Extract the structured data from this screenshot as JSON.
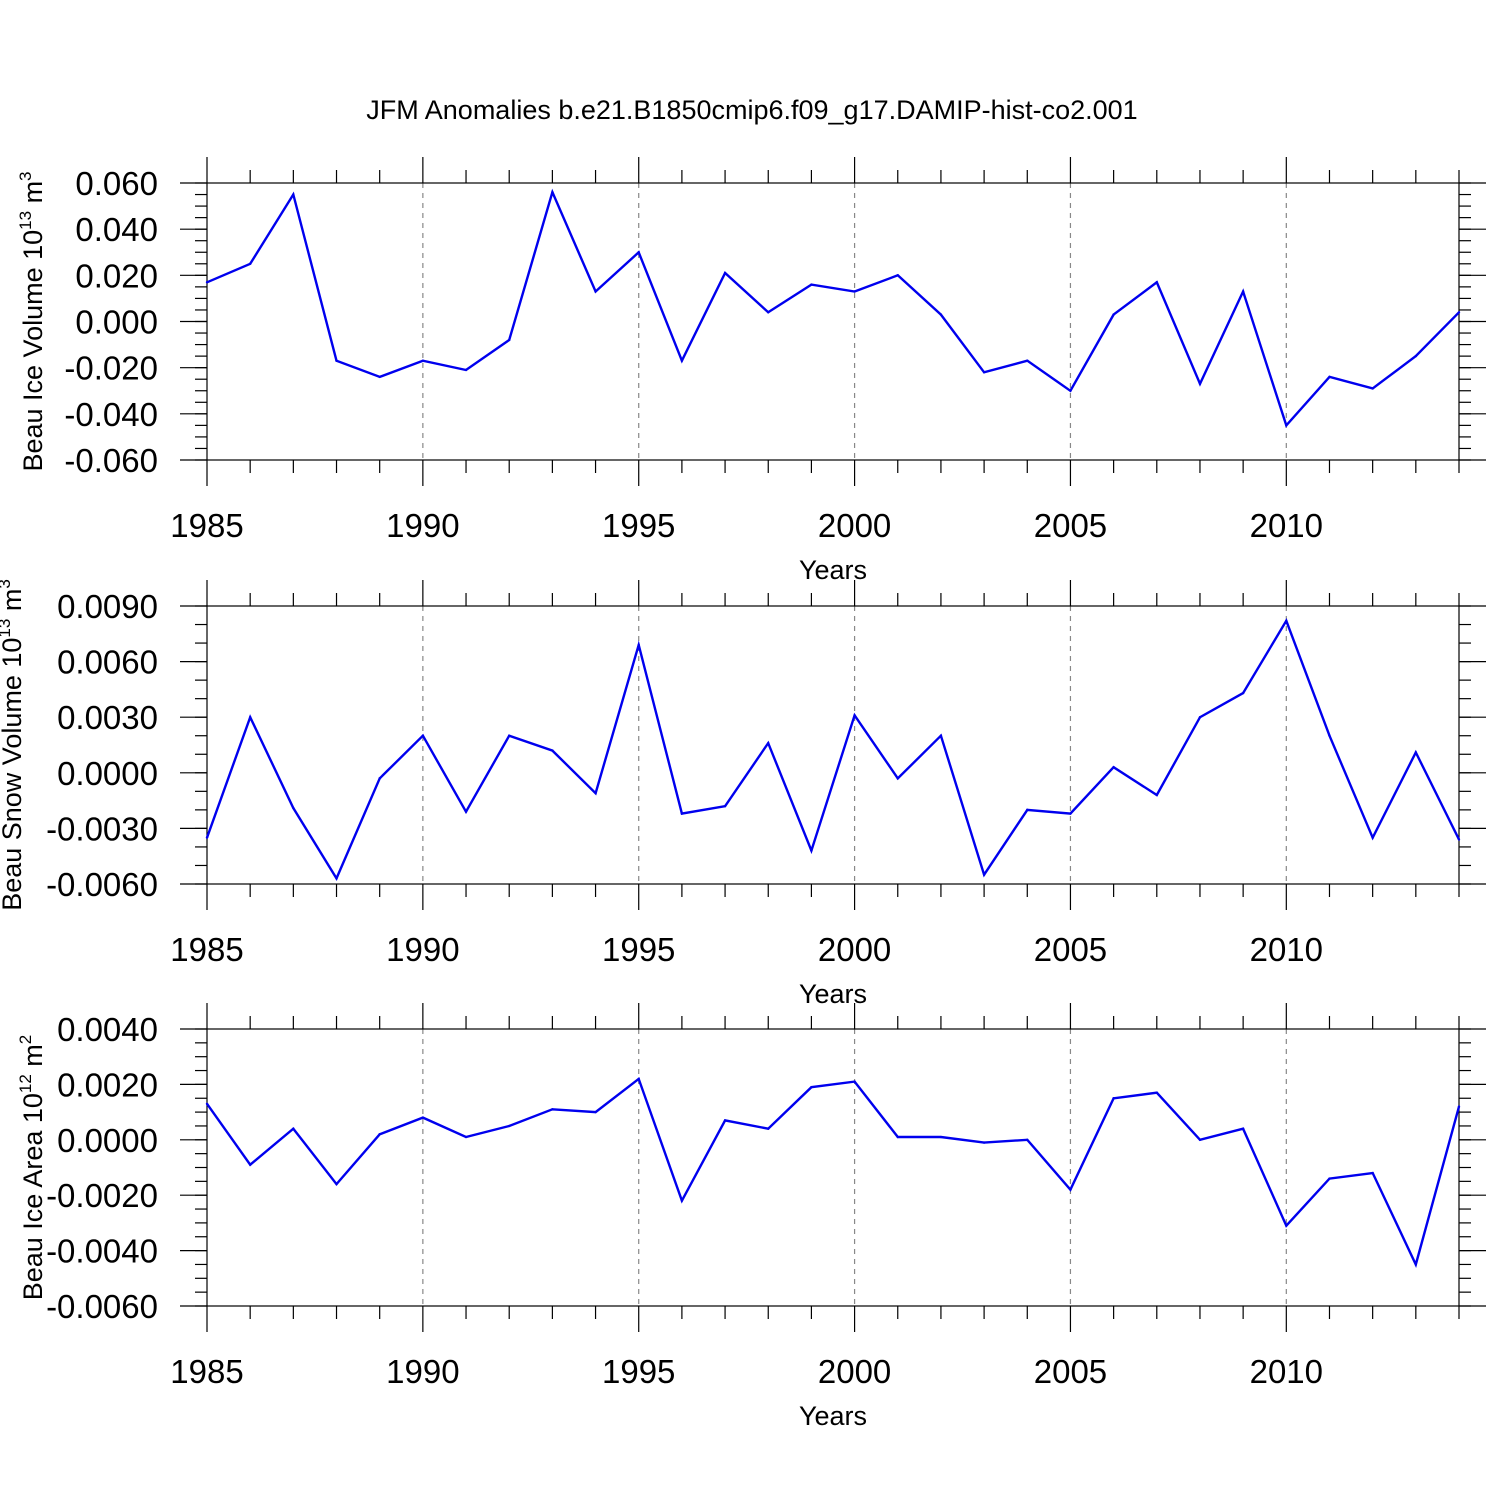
{
  "title": "JFM Anomalies b.e21.B1850cmip6.f09_g17.DAMIP-hist-co2.001",
  "colors": {
    "line": "#0000ee",
    "axis": "#000000",
    "grid": "#888888"
  },
  "chart_data": [
    {
      "type": "line",
      "name": "ice-volume",
      "ylabel": {
        "base": "Beau Ice Volume 10",
        "exp": "13",
        "unit": " m",
        "unit_exp": "3"
      },
      "xlabel": "Years",
      "xlim": [
        1985,
        2014
      ],
      "ylim": [
        -0.06,
        0.06
      ],
      "xticks": [
        1985,
        1990,
        1995,
        2000,
        2005,
        2010
      ],
      "xtick_labels": [
        "1985",
        "1990",
        "1995",
        "2000",
        "2005",
        "2010"
      ],
      "yticks": [
        0.06,
        0.04,
        0.02,
        0.0,
        -0.02,
        -0.04,
        -0.06
      ],
      "ytick_labels": [
        "0.060",
        "0.040",
        "0.020",
        "0.000",
        "-0.020",
        "-0.040",
        "-0.060"
      ],
      "minor_step": 0.005,
      "x": [
        1985,
        1986,
        1987,
        1988,
        1989,
        1990,
        1991,
        1992,
        1993,
        1994,
        1995,
        1996,
        1997,
        1998,
        1999,
        2000,
        2001,
        2002,
        2003,
        2004,
        2005,
        2006,
        2007,
        2008,
        2009,
        2010,
        2011,
        2012,
        2013,
        2014
      ],
      "values": [
        0.017,
        0.025,
        0.055,
        -0.017,
        -0.024,
        -0.017,
        -0.021,
        -0.008,
        0.056,
        0.013,
        0.03,
        -0.017,
        0.021,
        0.004,
        0.016,
        0.013,
        0.02,
        0.003,
        -0.022,
        -0.017,
        -0.03,
        0.003,
        0.017,
        -0.027,
        0.013,
        -0.045,
        -0.024,
        -0.029,
        -0.015,
        0.004
      ]
    },
    {
      "type": "line",
      "name": "snow-volume",
      "ylabel": {
        "base": "Beau Snow Volume 10",
        "exp": "13",
        "unit": " m",
        "unit_exp": "3"
      },
      "xlabel": "Years",
      "xlim": [
        1985,
        2014
      ],
      "ylim": [
        -0.006,
        0.009
      ],
      "xticks": [
        1985,
        1990,
        1995,
        2000,
        2005,
        2010
      ],
      "xtick_labels": [
        "1985",
        "1990",
        "1995",
        "2000",
        "2005",
        "2010"
      ],
      "yticks": [
        0.009,
        0.006,
        0.003,
        0.0,
        -0.003,
        -0.006
      ],
      "ytick_labels": [
        "0.0090",
        "0.0060",
        "0.0030",
        "0.0000",
        "-0.0030",
        "-0.0060"
      ],
      "minor_step": 0.001,
      "x": [
        1985,
        1986,
        1987,
        1988,
        1989,
        1990,
        1991,
        1992,
        1993,
        1994,
        1995,
        1996,
        1997,
        1998,
        1999,
        2000,
        2001,
        2002,
        2003,
        2004,
        2005,
        2006,
        2007,
        2008,
        2009,
        2010,
        2011,
        2012,
        2013,
        2014
      ],
      "values": [
        -0.0035,
        0.003,
        -0.0019,
        -0.0057,
        -0.0003,
        0.002,
        -0.0021,
        0.002,
        0.0012,
        -0.0011,
        0.0069,
        -0.0022,
        -0.0018,
        0.0016,
        -0.0042,
        0.0031,
        -0.0003,
        0.002,
        -0.0055,
        -0.002,
        -0.0022,
        0.0003,
        -0.0012,
        0.003,
        0.0043,
        0.0082,
        0.002,
        -0.0035,
        0.0011,
        -0.0036
      ]
    },
    {
      "type": "line",
      "name": "ice-area",
      "ylabel": {
        "base": "Beau Ice Area 10",
        "exp": "12",
        "unit": " m",
        "unit_exp": "2"
      },
      "xlabel": "Years",
      "xlim": [
        1985,
        2014
      ],
      "ylim": [
        -0.006,
        0.004
      ],
      "xticks": [
        1985,
        1990,
        1995,
        2000,
        2005,
        2010
      ],
      "xtick_labels": [
        "1985",
        "1990",
        "1995",
        "2000",
        "2005",
        "2010"
      ],
      "yticks": [
        0.004,
        0.002,
        0.0,
        -0.002,
        -0.004,
        -0.006
      ],
      "ytick_labels": [
        "0.0040",
        "0.0020",
        "0.0000",
        "-0.0020",
        "-0.0040",
        "-0.0060"
      ],
      "minor_step": 0.0005,
      "x": [
        1985,
        1986,
        1987,
        1988,
        1989,
        1990,
        1991,
        1992,
        1993,
        1994,
        1995,
        1996,
        1997,
        1998,
        1999,
        2000,
        2001,
        2002,
        2003,
        2004,
        2005,
        2006,
        2007,
        2008,
        2009,
        2010,
        2011,
        2012,
        2013,
        2014
      ],
      "values": [
        0.0013,
        -0.0009,
        0.0004,
        -0.0016,
        0.0002,
        0.0008,
        0.0001,
        0.0005,
        0.0011,
        0.001,
        0.0022,
        -0.0022,
        0.0007,
        0.0004,
        0.0019,
        0.0021,
        0.0001,
        0.0001,
        -0.0001,
        0.0,
        -0.0018,
        0.0015,
        0.0017,
        0.0,
        0.0004,
        -0.0031,
        -0.0014,
        -0.0012,
        -0.0045,
        0.0012
      ]
    }
  ]
}
